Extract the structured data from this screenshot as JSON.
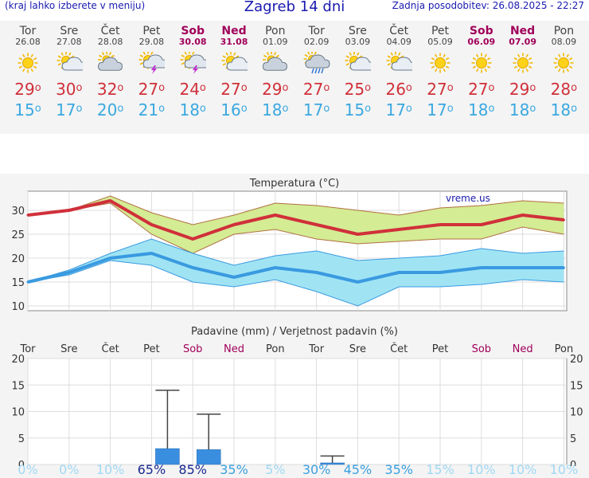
{
  "header": {
    "left_note": "(kraj lahko izberete v meniju)",
    "title": "Zagreb 14 dni",
    "updated": "Zadnja posodobitev: 26.08.2025 - 22:27"
  },
  "colors": {
    "max": "#d0303a",
    "min": "#3aa8e0",
    "weekend": "#a0005a",
    "bar": "#3a8ee0"
  },
  "days": [
    {
      "name": "Tor",
      "date": "26.08",
      "icon": "sun-icon",
      "max": "29",
      "min": "15",
      "weekend": false
    },
    {
      "name": "Sre",
      "date": "27.08",
      "icon": "sun-cloud-icon",
      "max": "30",
      "min": "17",
      "weekend": false
    },
    {
      "name": "Čet",
      "date": "28.08",
      "icon": "cloudy-sun-icon",
      "max": "32",
      "min": "20",
      "weekend": false
    },
    {
      "name": "Pet",
      "date": "29.08",
      "icon": "thunder-sun-icon",
      "max": "27",
      "min": "21",
      "weekend": false
    },
    {
      "name": "Sob",
      "date": "30.08",
      "icon": "thunder-sun-icon",
      "max": "24",
      "min": "18",
      "weekend": true
    },
    {
      "name": "Ned",
      "date": "31.08",
      "icon": "sun-cloud-icon",
      "max": "27",
      "min": "16",
      "weekend": true
    },
    {
      "name": "Pon",
      "date": "01.09",
      "icon": "cloudy-sun-icon",
      "max": "29",
      "min": "18",
      "weekend": false
    },
    {
      "name": "Tor",
      "date": "02.09",
      "icon": "rain-cloud-icon",
      "max": "27",
      "min": "17",
      "weekend": false
    },
    {
      "name": "Sre",
      "date": "03.09",
      "icon": "sun-cloud-icon",
      "max": "25",
      "min": "15",
      "weekend": false
    },
    {
      "name": "Čet",
      "date": "04.09",
      "icon": "sun-cloud-icon",
      "max": "26",
      "min": "17",
      "weekend": false
    },
    {
      "name": "Pet",
      "date": "05.09",
      "icon": "sun-icon",
      "max": "27",
      "min": "17",
      "weekend": false
    },
    {
      "name": "Sob",
      "date": "06.09",
      "icon": "sun-icon",
      "max": "27",
      "min": "18",
      "weekend": true
    },
    {
      "name": "Ned",
      "date": "07.09",
      "icon": "sun-icon",
      "max": "29",
      "min": "18",
      "weekend": true
    },
    {
      "name": "Pon",
      "date": "08.09",
      "icon": "sun-icon",
      "max": "28",
      "min": "18",
      "weekend": false
    }
  ],
  "chart_data": [
    {
      "type": "line",
      "title": "Temperatura (°C)",
      "watermark": "vreme.us",
      "ylim": [
        9,
        34
      ],
      "yticks": [
        10,
        15,
        20,
        25,
        30
      ],
      "series": [
        {
          "values": [
            29,
            30,
            32,
            27,
            24,
            27,
            29,
            27,
            25,
            26,
            27,
            27,
            29,
            28
          ],
          "band_low": [
            29,
            30,
            31.5,
            25,
            21,
            25,
            26,
            24,
            23,
            23.5,
            24,
            24,
            26.5,
            25
          ],
          "band_high": [
            29,
            30,
            33,
            29.5,
            27,
            29,
            31.5,
            31,
            30,
            29,
            30.5,
            31,
            32,
            31.5
          ]
        },
        {
          "values": [
            15,
            17,
            20,
            21,
            18,
            16,
            18,
            17,
            15,
            17,
            17,
            18,
            18,
            18
          ],
          "band_low": [
            15,
            16.5,
            19.5,
            18.5,
            15,
            14,
            15.5,
            13,
            10,
            14,
            14,
            14.5,
            15.5,
            15
          ],
          "band_high": [
            15,
            17.5,
            21,
            24,
            21,
            18.5,
            20.5,
            21.5,
            19.5,
            20,
            20.5,
            22,
            21,
            21.5
          ]
        }
      ]
    },
    {
      "type": "bar",
      "title": "Padavine (mm) / Verjetnost padavin (%)",
      "categories": [
        "Tor",
        "Sre",
        "Čet",
        "Pet",
        "Sob",
        "Ned",
        "Pon",
        "Tor",
        "Sre",
        "Čet",
        "Pet",
        "Sob",
        "Ned",
        "Pon"
      ],
      "values": [
        0,
        0,
        0,
        3,
        2.8,
        0,
        0,
        0.3,
        0,
        0,
        0,
        0,
        0,
        0
      ],
      "error_high": [
        0,
        0,
        0,
        14,
        9.5,
        0,
        0,
        1.6,
        0,
        0,
        0,
        0,
        0,
        0
      ],
      "probability": [
        "0%",
        "0%",
        "10%",
        "65%",
        "85%",
        "35%",
        "5%",
        "30%",
        "45%",
        "35%",
        "15%",
        "10%",
        "10%",
        "10%"
      ],
      "ylim": [
        0,
        20
      ],
      "yticks": [
        0,
        5,
        10,
        15,
        20
      ]
    }
  ]
}
